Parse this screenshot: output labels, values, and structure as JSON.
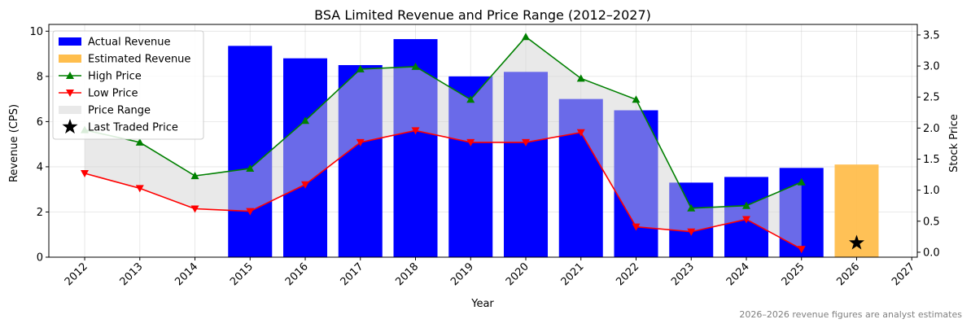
{
  "chart_data": {
    "type": "bar+line",
    "title": "BSA Limited Revenue and Price Range (2012–2027)",
    "xlabel": "Year",
    "ylabel_left": "Revenue (CPS)",
    "ylabel_right": "Stock Price",
    "x_ticks": [
      "2012",
      "2013",
      "2014",
      "2015",
      "2016",
      "2017",
      "2018",
      "2019",
      "2020",
      "2021",
      "2022",
      "2023",
      "2024",
      "2025",
      "2026",
      "2027"
    ],
    "xlim": [
      2011.35,
      2027.1
    ],
    "ylim_left": [
      0,
      10.3
    ],
    "yticks_left": [
      0,
      2,
      4,
      6,
      8,
      10
    ],
    "ylim_right": [
      -0.08,
      3.67
    ],
    "yticks_right": [
      0.0,
      0.5,
      1.0,
      1.5,
      2.0,
      2.5,
      3.0,
      3.5
    ],
    "ytick_labels_right": [
      "0.0",
      "0.5",
      "1.0",
      "1.5",
      "2.0",
      "2.5",
      "3.0",
      "3.5"
    ],
    "grid": true,
    "legend_position": "top-left",
    "legend": [
      "Actual Revenue",
      "Estimated Revenue",
      "High Price",
      "Low Price",
      "Price Range",
      "Last Traded Price"
    ],
    "revenue_actual": {
      "name": "Actual Revenue",
      "years": [
        2015,
        2016,
        2017,
        2018,
        2019,
        2020,
        2021,
        2022,
        2023,
        2024,
        2025
      ],
      "values": [
        9.35,
        8.8,
        8.5,
        9.65,
        8.0,
        8.2,
        7.0,
        6.5,
        3.3,
        3.55,
        3.95
      ],
      "color": "#0000ff"
    },
    "revenue_estimated": {
      "name": "Estimated Revenue",
      "years": [
        2026
      ],
      "values": [
        4.1
      ],
      "color": "#ffbe4d"
    },
    "high_price": {
      "name": "High Price",
      "years": [
        2012,
        2013,
        2014,
        2015,
        2016,
        2017,
        2018,
        2019,
        2020,
        2021,
        2022,
        2023,
        2024,
        2025
      ],
      "values": [
        1.97,
        1.77,
        1.23,
        1.35,
        2.12,
        2.95,
        2.99,
        2.46,
        3.47,
        2.8,
        2.46,
        0.71,
        0.75,
        1.13
      ],
      "color": "#008000"
    },
    "low_price": {
      "name": "Low Price",
      "years": [
        2012,
        2013,
        2014,
        2015,
        2016,
        2017,
        2018,
        2019,
        2020,
        2021,
        2022,
        2023,
        2024,
        2025
      ],
      "values": [
        1.27,
        1.03,
        0.7,
        0.66,
        1.09,
        1.77,
        1.96,
        1.77,
        1.77,
        1.93,
        0.41,
        0.33,
        0.53,
        0.05
      ],
      "color": "#ff0000"
    },
    "price_range": {
      "name": "Price Range",
      "color": "#d3d3d3"
    },
    "last_traded": {
      "name": "Last Traded Price",
      "year": 2026,
      "value": 0.15,
      "color": "#000000"
    },
    "footnote": "2026–2026 revenue figures are analyst estimates"
  }
}
